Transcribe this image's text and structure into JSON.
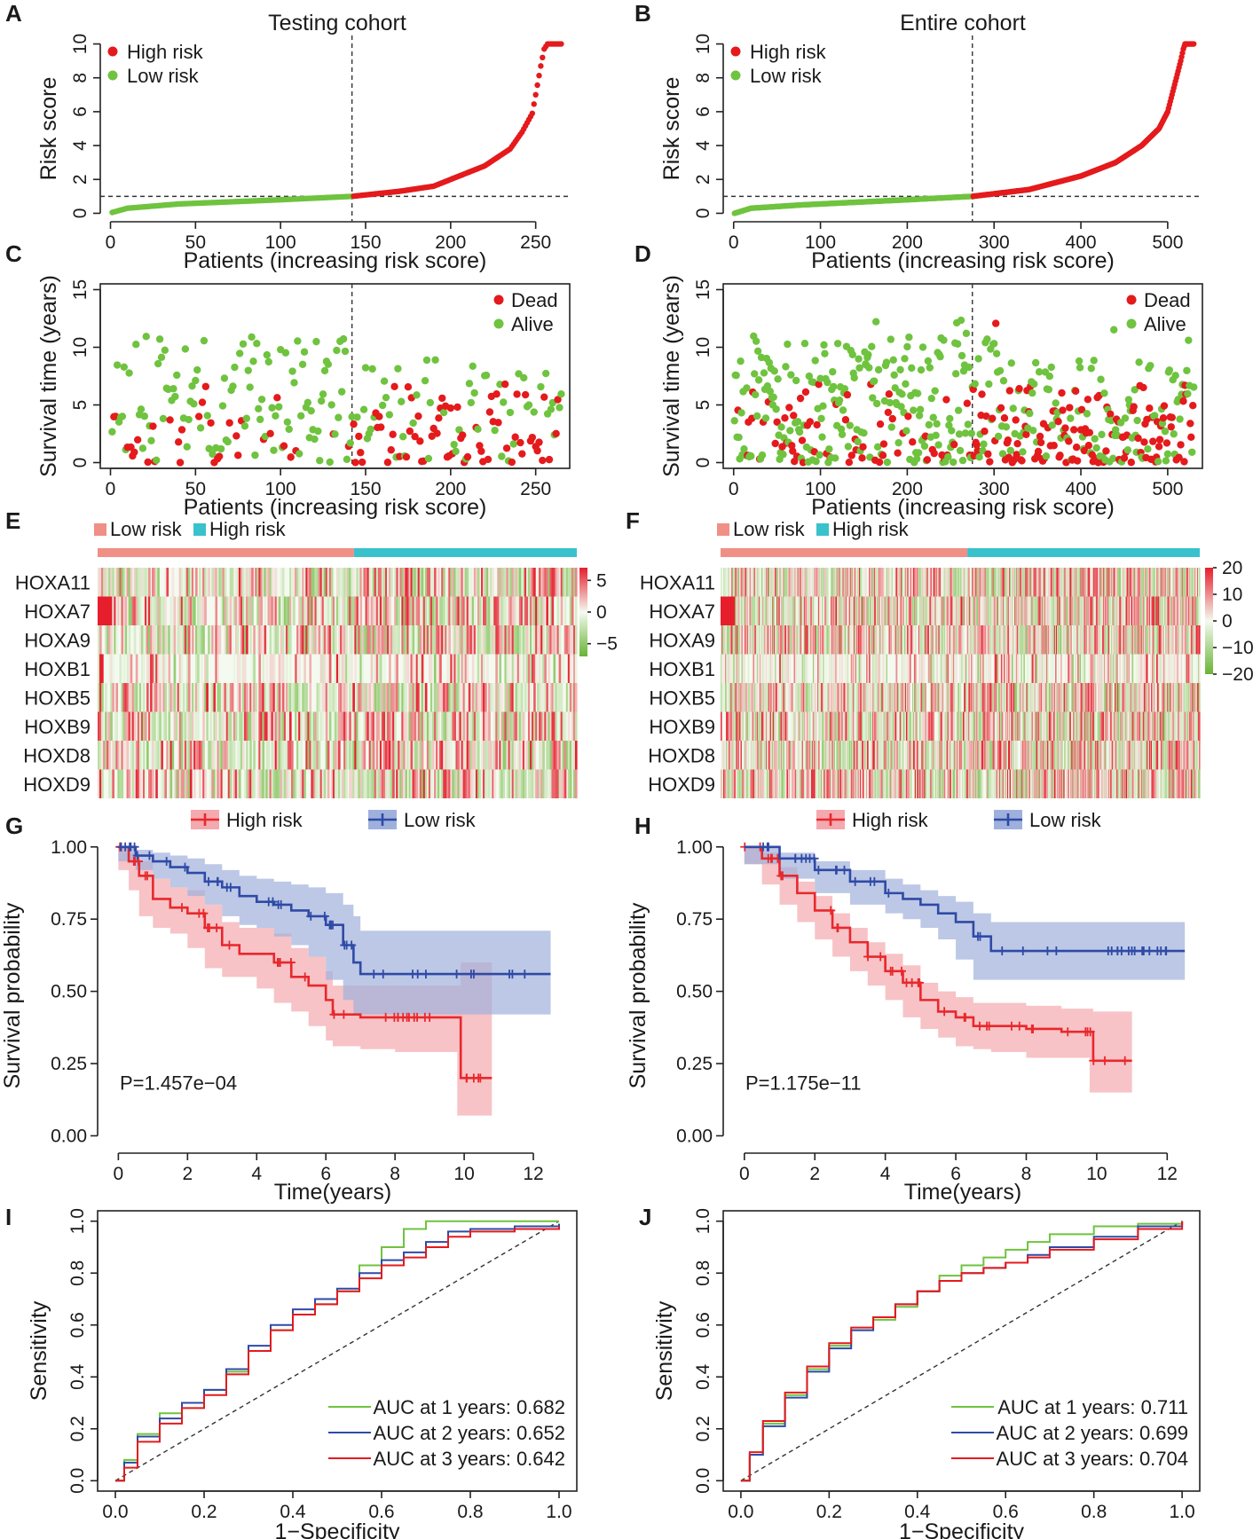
{
  "colors": {
    "high_risk": "#e41a1c",
    "low_risk": "#6fc33f",
    "dead": "#e41a1c",
    "alive": "#6fc33f",
    "bar_low": "#f08f86",
    "bar_high": "#39c2cb",
    "km_high": "#e8282d",
    "km_high_band": "#f4a9ae",
    "km_low": "#2f4aa6",
    "km_low_band": "#9fb0dc",
    "roc_1": "#6fc33f",
    "roc_2": "#2f4aa6",
    "roc_3": "#e41a1c"
  },
  "panels": {
    "A": {
      "letter": "A",
      "title": "Testing cohort"
    },
    "B": {
      "letter": "B",
      "title": "Entire cohort"
    },
    "C": {
      "letter": "C"
    },
    "D": {
      "letter": "D"
    },
    "E": {
      "letter": "E"
    },
    "F": {
      "letter": "F"
    },
    "G": {
      "letter": "G"
    },
    "H": {
      "letter": "H"
    },
    "I": {
      "letter": "I"
    },
    "J": {
      "letter": "J"
    }
  },
  "chart_data": [
    {
      "id": "A",
      "type": "scatter",
      "title": "Testing cohort",
      "xlabel": "Patients (increasing risk score)",
      "ylabel": "Risk score",
      "xlim": [
        -6,
        270
      ],
      "ylim": [
        -0.5,
        10.5
      ],
      "xticks": [
        0,
        50,
        100,
        150,
        200,
        250
      ],
      "yticks": [
        0,
        2,
        4,
        6,
        8,
        10
      ],
      "n": 265,
      "cutoff_index": 142,
      "cutoff_value": 1.0,
      "legend": [
        "High risk",
        "Low risk"
      ],
      "curve": [
        [
          1,
          0.05
        ],
        [
          10,
          0.3
        ],
        [
          40,
          0.55
        ],
        [
          100,
          0.8
        ],
        [
          142,
          1.0
        ],
        [
          170,
          1.3
        ],
        [
          190,
          1.6
        ],
        [
          205,
          2.2
        ],
        [
          220,
          2.8
        ],
        [
          235,
          3.8
        ],
        [
          242,
          4.8
        ],
        [
          248,
          5.9
        ],
        [
          250,
          7.0
        ],
        [
          253,
          8.7
        ],
        [
          255,
          9.7
        ],
        [
          257,
          10
        ],
        [
          265,
          10
        ]
      ]
    },
    {
      "id": "B",
      "type": "scatter",
      "title": "Entire cohort",
      "xlabel": "Patients (increasing risk score)",
      "ylabel": "Risk score",
      "xlim": [
        -12,
        540
      ],
      "ylim": [
        -0.5,
        10.5
      ],
      "xticks": [
        0,
        100,
        200,
        300,
        400,
        500
      ],
      "yticks": [
        0,
        2,
        4,
        6,
        8,
        10
      ],
      "n": 530,
      "cutoff_index": 275,
      "cutoff_value": 1.0,
      "legend": [
        "High risk",
        "Low risk"
      ],
      "curve": [
        [
          1,
          0.0
        ],
        [
          20,
          0.3
        ],
        [
          80,
          0.5
        ],
        [
          200,
          0.8
        ],
        [
          275,
          1.0
        ],
        [
          340,
          1.4
        ],
        [
          400,
          2.2
        ],
        [
          440,
          3.0
        ],
        [
          470,
          4.0
        ],
        [
          490,
          5.0
        ],
        [
          500,
          6.0
        ],
        [
          505,
          7.0
        ],
        [
          510,
          8.0
        ],
        [
          515,
          9.0
        ],
        [
          518,
          9.7
        ],
        [
          520,
          10
        ],
        [
          530,
          10
        ]
      ]
    },
    {
      "id": "C",
      "type": "scatter",
      "xlabel": "Patients (increasing risk score)",
      "ylabel": "Survival time (years)",
      "xlim": [
        -6,
        270
      ],
      "ylim": [
        -0.5,
        15.5
      ],
      "xticks": [
        0,
        50,
        100,
        150,
        200,
        250
      ],
      "yticks": [
        0,
        5,
        10,
        15
      ],
      "n": 265,
      "cutoff_index": 142,
      "legend": [
        "Dead",
        "Alive"
      ],
      "dead_fraction_low": 0.2,
      "dead_fraction_high": 0.55,
      "seed": 11
    },
    {
      "id": "D",
      "type": "scatter",
      "xlabel": "Patients (increasing risk score)",
      "ylabel": "Survival time (years)",
      "xlim": [
        -12,
        540
      ],
      "ylim": [
        -0.5,
        15.5
      ],
      "xticks": [
        0,
        100,
        200,
        300,
        400,
        500
      ],
      "yticks": [
        0,
        5,
        10,
        15
      ],
      "n": 530,
      "cutoff_index": 275,
      "legend": [
        "Dead",
        "Alive"
      ],
      "dead_fraction_low": 0.2,
      "dead_fraction_high": 0.55,
      "seed": 23
    },
    {
      "id": "E",
      "type": "heatmap",
      "rows": [
        "HOXA11",
        "HOXA7",
        "HOXA9",
        "HOXB1",
        "HOXB5",
        "HOXB9",
        "HOXD8",
        "HOXD9"
      ],
      "groups": [
        "Low risk",
        "High risk"
      ],
      "low_fraction": 0.535,
      "scale_ticks": [
        5,
        0,
        -5
      ],
      "scale_range": [
        -7,
        7
      ],
      "columns": 265,
      "seed": 5
    },
    {
      "id": "F",
      "type": "heatmap",
      "rows": [
        "HOXA11",
        "HOXA7",
        "HOXA9",
        "HOXB1",
        "HOXB5",
        "HOXB9",
        "HOXD8",
        "HOXD9"
      ],
      "groups": [
        "Low risk",
        "High risk"
      ],
      "low_fraction": 0.515,
      "scale_ticks": [
        20,
        10,
        0,
        -10,
        -20
      ],
      "scale_range": [
        -20,
        20
      ],
      "columns": 530,
      "seed": 9
    },
    {
      "id": "G",
      "type": "line",
      "xlabel": "Time(years)",
      "ylabel": "Survival probability",
      "xlim": [
        -0.6,
        13.0
      ],
      "ylim": [
        -0.06,
        1.03
      ],
      "xticks": [
        0,
        2,
        4,
        6,
        8,
        10,
        12
      ],
      "yticks": [
        "0.00",
        "0.25",
        "0.50",
        "0.75",
        "1.00"
      ],
      "legend": [
        "High risk",
        "Low risk"
      ],
      "pvalue": "P=1.457e−04",
      "series": [
        {
          "name": "High risk",
          "x": [
            0,
            0.3,
            0.6,
            1,
            1.5,
            2,
            2.5,
            3,
            3.5,
            4,
            4.5,
            5,
            5.5,
            6,
            6.2,
            7,
            8,
            9,
            9.8,
            9.9,
            10.8
          ],
          "y": [
            1.0,
            0.95,
            0.9,
            0.82,
            0.79,
            0.77,
            0.72,
            0.66,
            0.63,
            0.63,
            0.6,
            0.55,
            0.52,
            0.47,
            0.42,
            0.41,
            0.41,
            0.41,
            0.41,
            0.2,
            0.2
          ],
          "lower": [
            1.0,
            0.92,
            0.85,
            0.76,
            0.72,
            0.7,
            0.65,
            0.58,
            0.55,
            0.55,
            0.51,
            0.46,
            0.43,
            0.38,
            0.33,
            0.31,
            0.3,
            0.29,
            0.29,
            0.07,
            0.07
          ],
          "upper": [
            1.0,
            0.98,
            0.95,
            0.89,
            0.86,
            0.85,
            0.8,
            0.74,
            0.72,
            0.72,
            0.7,
            0.65,
            0.62,
            0.57,
            0.52,
            0.52,
            0.52,
            0.52,
            0.52,
            0.6,
            0.6
          ]
        },
        {
          "name": "Low risk",
          "x": [
            0,
            0.5,
            1,
            1.5,
            2,
            2.5,
            3,
            3.5,
            4,
            4.5,
            5,
            5.5,
            6,
            6.5,
            6.8,
            7,
            12.5
          ],
          "y": [
            1.0,
            0.97,
            0.95,
            0.93,
            0.91,
            0.88,
            0.86,
            0.83,
            0.81,
            0.8,
            0.78,
            0.76,
            0.73,
            0.66,
            0.6,
            0.56,
            0.56
          ],
          "lower": [
            1.0,
            0.95,
            0.92,
            0.89,
            0.86,
            0.83,
            0.8,
            0.76,
            0.73,
            0.72,
            0.69,
            0.66,
            0.62,
            0.54,
            0.47,
            0.42,
            0.42
          ],
          "upper": [
            1.0,
            0.99,
            0.98,
            0.97,
            0.96,
            0.94,
            0.92,
            0.9,
            0.89,
            0.88,
            0.87,
            0.86,
            0.84,
            0.8,
            0.76,
            0.71,
            0.71
          ]
        }
      ]
    },
    {
      "id": "H",
      "type": "line",
      "xlabel": "Time(years)",
      "ylabel": "Survival probability",
      "xlim": [
        -0.6,
        13.0
      ],
      "ylim": [
        -0.06,
        1.03
      ],
      "xticks": [
        0,
        2,
        4,
        6,
        8,
        10,
        12
      ],
      "yticks": [
        "0.00",
        "0.25",
        "0.50",
        "0.75",
        "1.00"
      ],
      "legend": [
        "High risk",
        "Low risk"
      ],
      "pvalue": "P=1.175e−11",
      "series": [
        {
          "name": "High risk",
          "x": [
            0,
            0.5,
            1,
            1.5,
            2,
            2.5,
            3,
            3.5,
            4,
            4.5,
            5,
            5.5,
            6,
            6.5,
            7,
            8,
            9,
            9.8,
            9.9,
            11
          ],
          "y": [
            1.0,
            0.96,
            0.9,
            0.84,
            0.78,
            0.72,
            0.67,
            0.62,
            0.57,
            0.53,
            0.47,
            0.43,
            0.41,
            0.38,
            0.38,
            0.37,
            0.36,
            0.36,
            0.26,
            0.26
          ],
          "lower": [
            1.0,
            0.94,
            0.87,
            0.8,
            0.74,
            0.68,
            0.62,
            0.57,
            0.52,
            0.47,
            0.41,
            0.37,
            0.34,
            0.31,
            0.3,
            0.29,
            0.27,
            0.27,
            0.15,
            0.15
          ],
          "upper": [
            1.0,
            0.98,
            0.93,
            0.88,
            0.83,
            0.77,
            0.72,
            0.67,
            0.63,
            0.59,
            0.53,
            0.5,
            0.48,
            0.46,
            0.46,
            0.45,
            0.44,
            0.44,
            0.43,
            0.43
          ]
        },
        {
          "name": "Low risk",
          "x": [
            0,
            1,
            2,
            3,
            4,
            4.5,
            5,
            5.5,
            6,
            6.5,
            7,
            12.5
          ],
          "y": [
            1.0,
            0.96,
            0.92,
            0.88,
            0.84,
            0.82,
            0.8,
            0.77,
            0.74,
            0.69,
            0.64,
            0.64
          ],
          "lower": [
            1.0,
            0.94,
            0.89,
            0.84,
            0.8,
            0.77,
            0.75,
            0.72,
            0.68,
            0.61,
            0.54,
            0.54
          ],
          "upper": [
            1.0,
            0.98,
            0.95,
            0.92,
            0.89,
            0.87,
            0.85,
            0.83,
            0.81,
            0.77,
            0.74,
            0.74
          ]
        }
      ]
    },
    {
      "id": "I",
      "type": "line",
      "xlabel": "1−Specificity",
      "ylabel": "Sensitivity",
      "xlim": [
        -0.04,
        1.04
      ],
      "ylim": [
        -0.04,
        1.04
      ],
      "xticks": [
        "0.0",
        "0.2",
        "0.4",
        "0.6",
        "0.8",
        "1.0"
      ],
      "yticks": [
        "0.0",
        "0.2",
        "0.4",
        "0.6",
        "0.8",
        "1.0"
      ],
      "series": [
        {
          "name": "AUC at 1 years: 0.682",
          "x": [
            0,
            0.02,
            0.05,
            0.1,
            0.15,
            0.2,
            0.25,
            0.3,
            0.35,
            0.4,
            0.45,
            0.5,
            0.55,
            0.6,
            0.65,
            0.7,
            0.75,
            0.8,
            1.0
          ],
          "y": [
            0,
            0.08,
            0.18,
            0.26,
            0.3,
            0.35,
            0.42,
            0.5,
            0.58,
            0.64,
            0.68,
            0.73,
            0.83,
            0.9,
            0.97,
            1.0,
            1.0,
            1.0,
            1.0
          ]
        },
        {
          "name": "AUC at 2 years: 0.652",
          "x": [
            0,
            0.02,
            0.05,
            0.1,
            0.15,
            0.2,
            0.25,
            0.3,
            0.35,
            0.4,
            0.45,
            0.5,
            0.55,
            0.6,
            0.65,
            0.7,
            0.75,
            0.8,
            0.9,
            1.0
          ],
          "y": [
            0,
            0.07,
            0.17,
            0.24,
            0.3,
            0.35,
            0.43,
            0.52,
            0.6,
            0.66,
            0.7,
            0.74,
            0.8,
            0.85,
            0.88,
            0.92,
            0.96,
            0.97,
            0.98,
            0.99
          ]
        },
        {
          "name": "AUC at 3 years: 0.642",
          "x": [
            0,
            0.02,
            0.05,
            0.1,
            0.15,
            0.2,
            0.25,
            0.3,
            0.35,
            0.4,
            0.45,
            0.5,
            0.55,
            0.6,
            0.65,
            0.7,
            0.75,
            0.8,
            0.9,
            1.0
          ],
          "y": [
            0,
            0.05,
            0.15,
            0.22,
            0.28,
            0.33,
            0.41,
            0.5,
            0.58,
            0.64,
            0.68,
            0.73,
            0.78,
            0.83,
            0.86,
            0.9,
            0.94,
            0.96,
            0.97,
            0.98
          ]
        }
      ]
    },
    {
      "id": "J",
      "type": "line",
      "xlabel": "1−Specificity",
      "ylabel": "Sensitivity",
      "xlim": [
        -0.04,
        1.04
      ],
      "ylim": [
        -0.04,
        1.04
      ],
      "xticks": [
        "0.0",
        "0.2",
        "0.4",
        "0.6",
        "0.8",
        "1.0"
      ],
      "yticks": [
        "0.0",
        "0.2",
        "0.4",
        "0.6",
        "0.8",
        "1.0"
      ],
      "series": [
        {
          "name": "AUC at 1 years: 0.711",
          "x": [
            0,
            0.02,
            0.05,
            0.1,
            0.15,
            0.2,
            0.25,
            0.3,
            0.35,
            0.4,
            0.45,
            0.5,
            0.55,
            0.6,
            0.65,
            0.7,
            0.8,
            0.9,
            1.0
          ],
          "y": [
            0,
            0.1,
            0.22,
            0.33,
            0.43,
            0.52,
            0.58,
            0.62,
            0.67,
            0.73,
            0.79,
            0.83,
            0.86,
            0.89,
            0.92,
            0.95,
            0.98,
            0.99,
            1.0
          ]
        },
        {
          "name": "AUC at 2 years: 0.699",
          "x": [
            0,
            0.02,
            0.05,
            0.1,
            0.15,
            0.2,
            0.25,
            0.3,
            0.35,
            0.4,
            0.45,
            0.5,
            0.55,
            0.6,
            0.65,
            0.7,
            0.8,
            0.9,
            1.0
          ],
          "y": [
            0,
            0.1,
            0.21,
            0.32,
            0.42,
            0.51,
            0.58,
            0.63,
            0.68,
            0.73,
            0.77,
            0.8,
            0.82,
            0.84,
            0.87,
            0.9,
            0.94,
            0.98,
            1.0
          ]
        },
        {
          "name": "AUC at 3 years: 0.704",
          "x": [
            0,
            0.02,
            0.05,
            0.1,
            0.15,
            0.2,
            0.25,
            0.3,
            0.35,
            0.4,
            0.45,
            0.5,
            0.55,
            0.6,
            0.65,
            0.7,
            0.8,
            0.9,
            1.0
          ],
          "y": [
            0,
            0.11,
            0.23,
            0.34,
            0.44,
            0.53,
            0.59,
            0.63,
            0.68,
            0.73,
            0.77,
            0.8,
            0.82,
            0.84,
            0.86,
            0.89,
            0.93,
            0.97,
            1.0
          ]
        }
      ]
    }
  ]
}
